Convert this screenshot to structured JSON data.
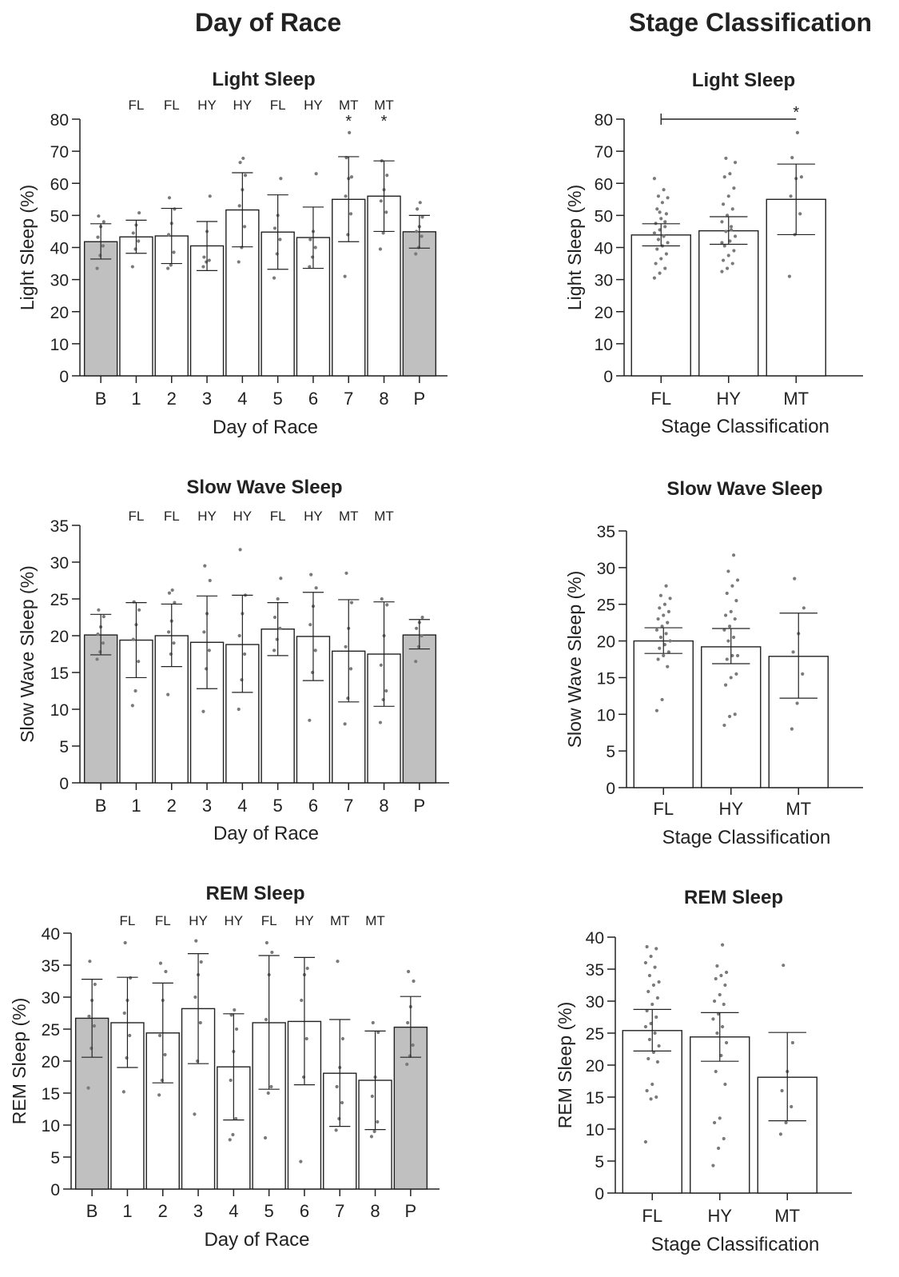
{
  "column_titles": [
    "Day of Race",
    "Stage Classification"
  ],
  "chart_data": [
    {
      "type": "bar",
      "title": "Light Sleep",
      "xlabel": "Day of Race",
      "ylabel": "Light Sleep (%)",
      "ylim": [
        0,
        80
      ],
      "yticks": [
        0,
        10,
        20,
        30,
        40,
        50,
        60,
        70,
        80
      ],
      "categories": [
        "B",
        "1",
        "2",
        "3",
        "4",
        "5",
        "6",
        "7",
        "8",
        "P"
      ],
      "stage_labels": [
        "",
        "FL",
        "FL",
        "HY",
        "HY",
        "FL",
        "HY",
        "MT",
        "MT",
        ""
      ],
      "significance": [
        "",
        "",
        "",
        "",
        "",
        "",
        "",
        "*",
        "*",
        ""
      ],
      "values": [
        41.8,
        43.3,
        43.6,
        40.5,
        51.7,
        44.8,
        43.1,
        55.0,
        56.0,
        44.9
      ],
      "error_low": [
        36.4,
        38.2,
        35.0,
        32.8,
        40.2,
        33.2,
        33.5,
        41.8,
        45.0,
        39.8
      ],
      "error_high": [
        47.4,
        48.5,
        52.2,
        48.1,
        63.3,
        56.4,
        52.6,
        68.3,
        67.0,
        50.0
      ],
      "fills": [
        "#c0c0c0",
        "#ffffff",
        "#ffffff",
        "#ffffff",
        "#ffffff",
        "#ffffff",
        "#ffffff",
        "#ffffff",
        "#ffffff",
        "#c0c0c0"
      ],
      "points": [
        [
          33.5,
          37.5,
          40.5,
          43.2,
          46.5,
          48.0,
          49.8
        ],
        [
          34.0,
          39.5,
          42.0,
          44.5,
          47.0,
          50.8
        ],
        [
          33.5,
          34.5,
          38.5,
          44.0,
          47.5,
          52.0,
          55.5
        ],
        [
          34.0,
          35.5,
          36.0,
          37.0,
          45.0,
          56.0
        ],
        [
          35.5,
          40.0,
          46.5,
          53.0,
          58.0,
          62.5,
          66.5,
          67.8
        ],
        [
          30.5,
          38.0,
          42.5,
          46.0,
          50.0,
          61.5
        ],
        [
          34.0,
          37.0,
          40.0,
          42.5,
          45.0,
          63.0
        ],
        [
          31.0,
          44.0,
          50.5,
          56.0,
          61.5,
          62.0,
          68.0,
          75.8
        ],
        [
          39.5,
          44.5,
          51.0,
          54.5,
          58.0,
          62.5,
          67.0
        ],
        [
          38.0,
          40.0,
          43.5,
          45.0,
          46.5,
          49.5,
          52.0,
          54.0
        ]
      ],
      "grid": false,
      "legend": "none"
    },
    {
      "type": "bar",
      "title": "Light Sleep",
      "xlabel": "Stage Classification",
      "ylabel": "Light Sleep (%)",
      "ylim": [
        0,
        80
      ],
      "yticks": [
        0,
        10,
        20,
        30,
        40,
        50,
        60,
        70,
        80
      ],
      "categories": [
        "FL",
        "HY",
        "MT"
      ],
      "values": [
        43.9,
        45.2,
        55.0
      ],
      "error_low": [
        40.5,
        41.0,
        44.0
      ],
      "error_high": [
        47.4,
        49.6,
        66.0
      ],
      "fills": [
        "#ffffff",
        "#ffffff",
        "#ffffff"
      ],
      "comparison": {
        "from": "FL",
        "to": "MT",
        "y": 80,
        "label": "*"
      },
      "points": [
        [
          30.5,
          32.0,
          33.5,
          35.0,
          36.5,
          38.0,
          39.5,
          40.5,
          41.5,
          42.5,
          43.5,
          44.5,
          45.5,
          46.5,
          47.5,
          49.0,
          50.5,
          52.0,
          54.0,
          55.5,
          56.0,
          58.0,
          61.5,
          51.0,
          48.0
        ],
        [
          32.5,
          33.5,
          35.0,
          36.0,
          37.5,
          39.0,
          40.5,
          42.0,
          43.5,
          45.0,
          46.5,
          48.0,
          50.0,
          52.0,
          53.5,
          56.0,
          58.5,
          62.0,
          63.0,
          66.5,
          67.8,
          45.5,
          41.5
        ],
        [
          31.0,
          44.0,
          50.5,
          56.0,
          61.5,
          62.0,
          68.0,
          75.8
        ]
      ],
      "grid": false,
      "legend": "none"
    },
    {
      "type": "bar",
      "title": "Slow Wave Sleep",
      "xlabel": "Day of Race",
      "ylabel": "Slow Wave Sleep (%)",
      "ylim": [
        0,
        35
      ],
      "yticks": [
        0,
        5,
        10,
        15,
        20,
        25,
        30,
        35
      ],
      "categories": [
        "B",
        "1",
        "2",
        "3",
        "4",
        "5",
        "6",
        "7",
        "8",
        "P"
      ],
      "stage_labels": [
        "",
        "FL",
        "FL",
        "HY",
        "HY",
        "FL",
        "HY",
        "MT",
        "MT",
        ""
      ],
      "values": [
        20.1,
        19.4,
        20.0,
        19.1,
        18.8,
        20.9,
        19.9,
        17.9,
        17.5,
        20.1
      ],
      "error_low": [
        17.4,
        14.3,
        15.8,
        12.8,
        12.3,
        17.3,
        13.9,
        11.0,
        10.4,
        18.2
      ],
      "error_high": [
        22.9,
        24.5,
        24.3,
        25.4,
        25.5,
        24.5,
        25.9,
        24.9,
        24.6,
        22.2
      ],
      "fills": [
        "#c0c0c0",
        "#ffffff",
        "#ffffff",
        "#ffffff",
        "#ffffff",
        "#ffffff",
        "#ffffff",
        "#ffffff",
        "#ffffff",
        "#c0c0c0"
      ],
      "points": [
        [
          16.8,
          17.8,
          19.0,
          20.2,
          21.2,
          22.6,
          23.5
        ],
        [
          10.5,
          12.5,
          16.5,
          19.5,
          21.5,
          23.5,
          24.6
        ],
        [
          12.0,
          17.5,
          19.0,
          20.5,
          22.0,
          24.5,
          25.8,
          26.2
        ],
        [
          9.7,
          15.5,
          18.0,
          20.5,
          23.0,
          27.5,
          29.5
        ],
        [
          10.0,
          14.0,
          17.5,
          20.0,
          23.0,
          25.5,
          31.7
        ],
        [
          18.0,
          19.5,
          21.0,
          22.5,
          25.0,
          27.8
        ],
        [
          8.5,
          15.0,
          18.0,
          21.5,
          24.0,
          26.5,
          28.3
        ],
        [
          8.0,
          11.5,
          15.5,
          18.5,
          21.0,
          24.5,
          28.5
        ],
        [
          8.2,
          11.3,
          12.5,
          16.0,
          20.0,
          24.2,
          25.0
        ],
        [
          16.5,
          18.5,
          20.0,
          21.0,
          21.8,
          22.5
        ]
      ],
      "grid": false,
      "legend": "none"
    },
    {
      "type": "bar",
      "title": "Slow Wave Sleep",
      "xlabel": "Stage Classification",
      "ylabel": "Slow Wave Sleep (%)",
      "ylim": [
        0,
        35
      ],
      "yticks": [
        0,
        5,
        10,
        15,
        20,
        25,
        30,
        35
      ],
      "categories": [
        "FL",
        "HY",
        "MT"
      ],
      "values": [
        20.0,
        19.2,
        17.9
      ],
      "error_low": [
        18.3,
        16.9,
        12.2
      ],
      "error_high": [
        21.8,
        21.7,
        23.8
      ],
      "fills": [
        "#ffffff",
        "#ffffff",
        "#ffffff"
      ],
      "points": [
        [
          10.5,
          12.0,
          16.5,
          17.5,
          18.0,
          18.5,
          19.0,
          19.5,
          20.0,
          20.5,
          21.0,
          21.5,
          22.0,
          22.5,
          23.0,
          23.5,
          24.0,
          24.5,
          25.0,
          25.8,
          26.2,
          27.5
        ],
        [
          8.5,
          9.7,
          10.0,
          14.0,
          15.0,
          15.5,
          17.5,
          18.0,
          18.0,
          20.0,
          20.5,
          21.5,
          22.0,
          23.0,
          23.5,
          24.0,
          25.5,
          26.5,
          27.5,
          28.3,
          29.5,
          31.7
        ],
        [
          8.0,
          11.5,
          15.5,
          18.5,
          21.0,
          24.5,
          28.5
        ]
      ],
      "grid": false,
      "legend": "none"
    },
    {
      "type": "bar",
      "title": "REM Sleep",
      "xlabel": "Day of Race",
      "ylabel": "REM Sleep (%)",
      "ylim": [
        0,
        40
      ],
      "yticks": [
        0,
        5,
        10,
        15,
        20,
        25,
        30,
        35,
        40
      ],
      "categories": [
        "B",
        "1",
        "2",
        "3",
        "4",
        "5",
        "6",
        "7",
        "8",
        "P"
      ],
      "stage_labels": [
        "",
        "FL",
        "FL",
        "HY",
        "HY",
        "FL",
        "HY",
        "MT",
        "MT",
        ""
      ],
      "values": [
        26.7,
        26.0,
        24.4,
        28.2,
        19.1,
        26.0,
        26.2,
        18.1,
        17.0,
        25.3
      ],
      "error_low": [
        20.6,
        19.0,
        16.6,
        19.6,
        10.8,
        15.6,
        16.3,
        9.8,
        9.3,
        20.6
      ],
      "error_high": [
        32.8,
        33.1,
        32.2,
        36.8,
        27.4,
        36.5,
        36.2,
        26.5,
        24.7,
        30.1
      ],
      "fills": [
        "#c0c0c0",
        "#ffffff",
        "#ffffff",
        "#ffffff",
        "#ffffff",
        "#ffffff",
        "#ffffff",
        "#ffffff",
        "#ffffff",
        "#c0c0c0"
      ],
      "points": [
        [
          15.8,
          22.0,
          25.5,
          27.0,
          29.5,
          32.0,
          35.6
        ],
        [
          15.2,
          20.5,
          24.0,
          27.5,
          29.5,
          33.0,
          38.5
        ],
        [
          14.7,
          17.0,
          21.0,
          24.0,
          29.5,
          34.0,
          35.3
        ],
        [
          11.7,
          20.0,
          26.0,
          30.0,
          33.5,
          35.5,
          38.8
        ],
        [
          7.7,
          8.5,
          11.0,
          17.0,
          21.5,
          25.0,
          27.2,
          28.0
        ],
        [
          8.0,
          15.0,
          16.0,
          26.5,
          33.5,
          37.0,
          38.5
        ],
        [
          4.3,
          17.5,
          23.5,
          29.5,
          33.5,
          34.5
        ],
        [
          9.2,
          11.0,
          13.5,
          16.0,
          19.0,
          23.5,
          35.6
        ],
        [
          8.2,
          9.0,
          10.5,
          14.5,
          17.5,
          24.5,
          26.0
        ],
        [
          19.5,
          20.8,
          22.5,
          26.0,
          28.5,
          32.5,
          34.0
        ]
      ],
      "grid": false,
      "legend": "none"
    },
    {
      "type": "bar",
      "title": "REM Sleep",
      "xlabel": "Stage Classification",
      "ylabel": "REM Sleep (%)",
      "ylim": [
        0,
        40
      ],
      "yticks": [
        0,
        5,
        10,
        15,
        20,
        25,
        30,
        35,
        40
      ],
      "categories": [
        "FL",
        "HY",
        "MT"
      ],
      "values": [
        25.4,
        24.4,
        18.1
      ],
      "error_low": [
        22.2,
        20.6,
        11.3
      ],
      "error_high": [
        28.7,
        28.2,
        25.1
      ],
      "fills": [
        "#ffffff",
        "#ffffff",
        "#ffffff"
      ],
      "points": [
        [
          8.0,
          14.7,
          15.0,
          16.0,
          17.0,
          20.5,
          21.0,
          22.0,
          23.0,
          24.0,
          25.0,
          26.0,
          26.5,
          27.5,
          28.5,
          29.5,
          30.5,
          31.5,
          32.5,
          33.0,
          34.0,
          35.3,
          36.0,
          37.0,
          38.2,
          38.5
        ],
        [
          4.3,
          7.0,
          8.5,
          11.0,
          11.7,
          17.0,
          19.0,
          21.5,
          23.5,
          25.0,
          26.0,
          27.2,
          28.0,
          29.5,
          30.0,
          31.0,
          32.5,
          33.5,
          34.0,
          34.5,
          35.5,
          38.8
        ],
        [
          9.2,
          11.0,
          13.5,
          16.0,
          19.0,
          23.5,
          35.6
        ]
      ],
      "grid": false,
      "legend": "none"
    }
  ]
}
